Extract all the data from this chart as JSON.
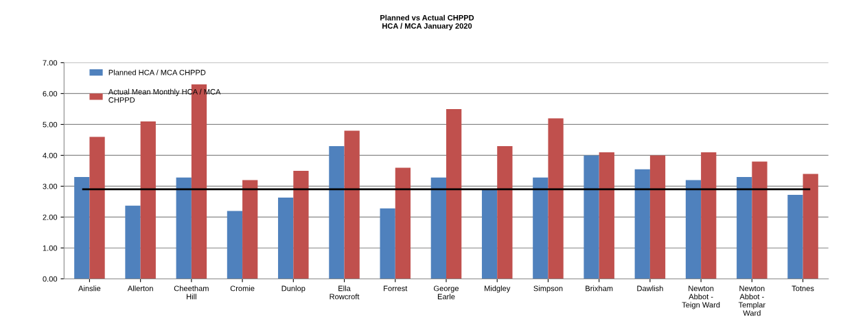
{
  "chart_data": {
    "type": "bar",
    "title": "Planned vs Actual CHPPD\nHCA / MCA January 2020",
    "categories": [
      "Ainslie",
      "Allerton",
      "Cheetham\nHill",
      "Cromie",
      "Dunlop",
      "Ella\nRowcroft",
      "Forrest",
      "George\nEarle",
      "Midgley",
      "Simpson",
      "Brixham",
      "Dawlish",
      "Newton\nAbbot -\nTeign Ward",
      "Newton\nAbbot -\nTemplar\nWard",
      "Totnes"
    ],
    "series": [
      {
        "name": "Planned HCA / MCA CHPPD",
        "color": "#4f81bd",
        "values": [
          3.3,
          2.37,
          3.28,
          2.2,
          2.63,
          4.3,
          2.28,
          3.28,
          2.9,
          3.28,
          4.0,
          3.55,
          3.2,
          3.3,
          2.72
        ]
      },
      {
        "name": "Actual Mean Monthly HCA / MCA\nCHPPD",
        "color": "#c0504d",
        "values": [
          4.6,
          5.1,
          6.3,
          3.2,
          3.5,
          4.8,
          3.6,
          5.5,
          4.3,
          5.2,
          4.1,
          4.0,
          4.1,
          3.8,
          3.4
        ]
      }
    ],
    "ylim": [
      0,
      7
    ],
    "yticks": [
      {
        "value": 0,
        "label": "0.00"
      },
      {
        "value": 1,
        "label": "1.00"
      },
      {
        "value": 2,
        "label": "2.00"
      },
      {
        "value": 3,
        "label": "3.00"
      },
      {
        "value": 4,
        "label": "4.00"
      },
      {
        "value": 5,
        "label": "5.00"
      },
      {
        "value": 6,
        "label": "6.00"
      },
      {
        "value": 7,
        "label": "7.00"
      }
    ],
    "ref_lines": [
      {
        "axis": "y",
        "value": 2.9,
        "color": "#000000"
      }
    ],
    "grid": "y",
    "legend": "top left"
  }
}
